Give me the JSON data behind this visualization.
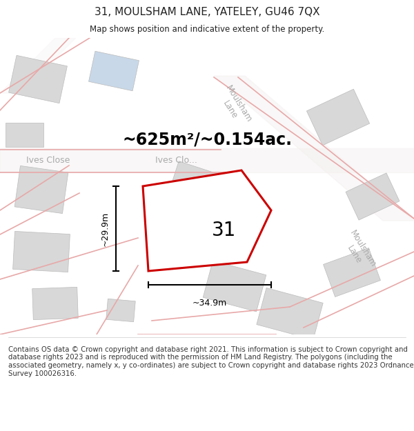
{
  "title": "31, MOULSHAM LANE, YATELEY, GU46 7QX",
  "subtitle": "Map shows position and indicative extent of the property.",
  "area_text": "~625m²/~0.154ac.",
  "label_31": "31",
  "dim_width": "~34.9m",
  "dim_height": "~29.9m",
  "footer": "Contains OS data © Crown copyright and database right 2021. This information is subject to Crown copyright and database rights 2023 and is reproduced with the permission of HM Land Registry. The polygons (including the associated geometry, namely x, y co-ordinates) are subject to Crown copyright and database rights 2023 Ordnance Survey 100026316.",
  "bg_color": "#ffffff",
  "map_bg": "#ffffff",
  "polygon_edge": "#cc0000",
  "polygon_fill": "#ffffff",
  "building_color": "#d8d8d8",
  "building_blue": "#c8d8e8",
  "road_line": "#e8a8a8",
  "road_fill": "#f5f0f0",
  "text_color": "#222222",
  "street_color": "#aaaaaa",
  "footer_color": "#333333",
  "dim_color": "#000000"
}
